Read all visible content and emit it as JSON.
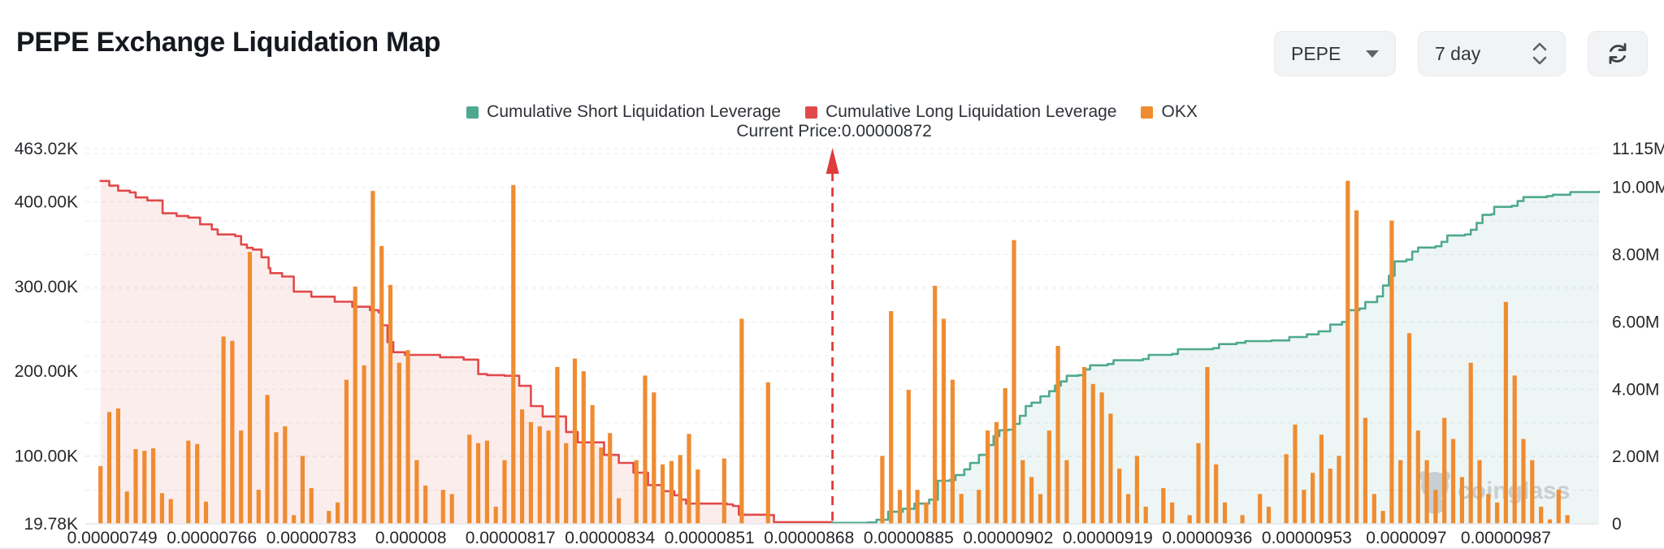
{
  "header": {
    "title": "PEPE Exchange Liquidation Map",
    "coin_select": "PEPE",
    "range_select": "7 day",
    "icons": {
      "coin_caret": "caret-down",
      "range_stepper": "chevron-up-down",
      "refresh": "refresh-arrows"
    }
  },
  "watermark": {
    "text": "coinglass",
    "icon": "gorilla-logo",
    "color": "#c6cacf"
  },
  "chart_data": {
    "type": "mixed-bar-line",
    "legend": [
      {
        "key": "short",
        "label": "Cumulative Short Liquidation Leverage",
        "color": "#4fa98f"
      },
      {
        "key": "long",
        "label": "Cumulative Long Liquidation Leverage",
        "color": "#e14a4a"
      },
      {
        "key": "okx",
        "label": "OKX",
        "color": "#ef8c31"
      }
    ],
    "current_price_label": "Current Price:0.00000872",
    "current_price_e6": 8.72,
    "price_marker_color": "#e03b3b",
    "price_domain_e6": [
      7.444,
      10.029
    ],
    "grid_on": true,
    "left_axis": {
      "unit": "K",
      "min_k": 19.78,
      "max_k": 463.02,
      "ticks": [
        {
          "label": "463.02K",
          "k": 463.02
        },
        {
          "label": "400.00K",
          "k": 400
        },
        {
          "label": "300.00K",
          "k": 300
        },
        {
          "label": "200.00K",
          "k": 200
        },
        {
          "label": "100.00K",
          "k": 100
        },
        {
          "label": "19.78K",
          "k": 19.78
        }
      ],
      "grid_k": [
        100,
        200,
        300,
        400,
        463.02
      ]
    },
    "right_axis": {
      "unit": "M",
      "min_m": 0,
      "max_m": 11.15,
      "ticks": [
        {
          "label": "11.15M",
          "m": 11.15
        },
        {
          "label": "10.00M",
          "m": 10
        },
        {
          "label": "8.00M",
          "m": 8
        },
        {
          "label": "6.00M",
          "m": 6
        },
        {
          "label": "4.00M",
          "m": 4
        },
        {
          "label": "2.00M",
          "m": 2
        },
        {
          "label": "0",
          "m": 0
        }
      ],
      "grid_m": [
        1,
        2,
        3,
        4,
        5,
        6,
        7,
        8,
        9,
        10,
        11,
        11.15
      ]
    },
    "x_axis": {
      "labels": [
        {
          "label": "0.00000749",
          "p": 7.49
        },
        {
          "label": "0.00000766",
          "p": 7.66
        },
        {
          "label": "0.00000783",
          "p": 7.83
        },
        {
          "label": "0.000008",
          "p": 8.0
        },
        {
          "label": "0.00000817",
          "p": 8.17
        },
        {
          "label": "0.00000834",
          "p": 8.34
        },
        {
          "label": "0.00000851",
          "p": 8.51
        },
        {
          "label": "0.00000868",
          "p": 8.68
        },
        {
          "label": "0.00000885",
          "p": 8.85
        },
        {
          "label": "0.00000902",
          "p": 9.02
        },
        {
          "label": "0.00000919",
          "p": 9.19
        },
        {
          "label": "0.00000936",
          "p": 9.36
        },
        {
          "label": "0.00000953",
          "p": 9.53
        },
        {
          "label": "0.0000097",
          "p": 9.7
        },
        {
          "label": "0.00000987",
          "p": 9.87
        }
      ]
    },
    "bars": {
      "name": "OKX",
      "color": "#ef8c31",
      "axis": "left",
      "start_e6": 7.455,
      "step_e6": 0.015,
      "bar_width": 5.2,
      "values_k": [
        0,
        88,
        152,
        156,
        58,
        108,
        106,
        109,
        56,
        49,
        0,
        118,
        114,
        46,
        0,
        241,
        236,
        130,
        341,
        60,
        172,
        128,
        135,
        30,
        100,
        62,
        0,
        35,
        45,
        190,
        300,
        207,
        413,
        348,
        302,
        210,
        225,
        95,
        65,
        0,
        60,
        55,
        0,
        125,
        115,
        118,
        40,
        95,
        420,
        155,
        140,
        135,
        130,
        205,
        115,
        215,
        200,
        160,
        110,
        127,
        50,
        0,
        95,
        195,
        175,
        90,
        94,
        101,
        126,
        84,
        0,
        0,
        97,
        0,
        262,
        0,
        0,
        187,
        0,
        0,
        0,
        0,
        0,
        0,
        0,
        0,
        0,
        0,
        0,
        0,
        100,
        271,
        60,
        178,
        60,
        45,
        301,
        262,
        190,
        55,
        0,
        60,
        130,
        140,
        180,
        355,
        95,
        75,
        55,
        130,
        230,
        95,
        0,
        205,
        185,
        175,
        150,
        85,
        55,
        100,
        40,
        0,
        62,
        45,
        0,
        30,
        115,
        205,
        90,
        45,
        0,
        30,
        0,
        55,
        40,
        0,
        102,
        137,
        60,
        80,
        125,
        85,
        100,
        425,
        390,
        145,
        55,
        35,
        378,
        95,
        245,
        130,
        95,
        60,
        145,
        120,
        75,
        210,
        95,
        55,
        45,
        282,
        195,
        120,
        95,
        40,
        25,
        60,
        30
      ]
    },
    "lines": [
      {
        "name": "Cumulative Long Liquidation Leverage",
        "color": "#e14a4a",
        "fill": "rgba(225,74,74,0.10)",
        "axis": "right",
        "points_m": [
          [
            7.47,
            10.19
          ],
          [
            7.485,
            10.05
          ],
          [
            7.5,
            9.9
          ],
          [
            7.52,
            9.85
          ],
          [
            7.53,
            9.7
          ],
          [
            7.55,
            9.61
          ],
          [
            7.576,
            9.23
          ],
          [
            7.6,
            9.15
          ],
          [
            7.62,
            9.1
          ],
          [
            7.64,
            8.9
          ],
          [
            7.66,
            8.75
          ],
          [
            7.67,
            8.6
          ],
          [
            7.7,
            8.55
          ],
          [
            7.71,
            8.3
          ],
          [
            7.72,
            8.2
          ],
          [
            7.73,
            8.15
          ],
          [
            7.745,
            7.92
          ],
          [
            7.757,
            7.6
          ],
          [
            7.76,
            7.45
          ],
          [
            7.78,
            7.35
          ],
          [
            7.8,
            6.9
          ],
          [
            7.83,
            6.75
          ],
          [
            7.87,
            6.6
          ],
          [
            7.9,
            6.45
          ],
          [
            7.93,
            6.35
          ],
          [
            7.945,
            6.28
          ],
          [
            7.95,
            5.9
          ],
          [
            7.96,
            5.4
          ],
          [
            7.97,
            5.1
          ],
          [
            7.99,
            5.02
          ],
          [
            8.05,
            4.95
          ],
          [
            8.09,
            4.88
          ],
          [
            8.115,
            4.45
          ],
          [
            8.13,
            4.42
          ],
          [
            8.16,
            4.4
          ],
          [
            8.185,
            4.1
          ],
          [
            8.205,
            3.5
          ],
          [
            8.225,
            3.19
          ],
          [
            8.265,
            2.73
          ],
          [
            8.285,
            2.42
          ],
          [
            8.33,
            2.05
          ],
          [
            8.355,
            1.81
          ],
          [
            8.38,
            1.52
          ],
          [
            8.405,
            1.15
          ],
          [
            8.43,
            0.97
          ],
          [
            8.45,
            0.85
          ],
          [
            8.46,
            0.72
          ],
          [
            8.47,
            0.6
          ],
          [
            8.54,
            0.58
          ],
          [
            8.55,
            0.53
          ],
          [
            8.56,
            0.27
          ],
          [
            8.61,
            0.26
          ],
          [
            8.62,
            0.05
          ],
          [
            8.72,
            0.04
          ]
        ]
      },
      {
        "name": "Cumulative Short Liquidation Leverage",
        "color": "#4fa98f",
        "fill": "rgba(79,169,143,0.10)",
        "axis": "right",
        "points_m": [
          [
            8.72,
            0.03
          ],
          [
            8.78,
            0.04
          ],
          [
            8.795,
            0.12
          ],
          [
            8.815,
            0.36
          ],
          [
            8.84,
            0.45
          ],
          [
            8.86,
            0.6
          ],
          [
            8.885,
            0.72
          ],
          [
            8.9,
            1.28
          ],
          [
            8.92,
            1.3
          ],
          [
            8.93,
            1.45
          ],
          [
            8.945,
            1.62
          ],
          [
            8.955,
            1.81
          ],
          [
            8.97,
            2.05
          ],
          [
            8.985,
            2.34
          ],
          [
            8.995,
            2.61
          ],
          [
            9.005,
            2.78
          ],
          [
            9.02,
            2.8
          ],
          [
            9.03,
            2.97
          ],
          [
            9.04,
            3.21
          ],
          [
            9.05,
            3.5
          ],
          [
            9.06,
            3.6
          ],
          [
            9.075,
            3.79
          ],
          [
            9.09,
            3.94
          ],
          [
            9.1,
            4.11
          ],
          [
            9.11,
            4.23
          ],
          [
            9.12,
            4.4
          ],
          [
            9.14,
            4.42
          ],
          [
            9.15,
            4.59
          ],
          [
            9.16,
            4.71
          ],
          [
            9.19,
            4.75
          ],
          [
            9.2,
            4.86
          ],
          [
            9.25,
            4.9
          ],
          [
            9.26,
            5.02
          ],
          [
            9.3,
            5.05
          ],
          [
            9.31,
            5.19
          ],
          [
            9.37,
            5.22
          ],
          [
            9.38,
            5.34
          ],
          [
            9.41,
            5.38
          ],
          [
            9.425,
            5.43
          ],
          [
            9.47,
            5.45
          ],
          [
            9.5,
            5.55
          ],
          [
            9.53,
            5.63
          ],
          [
            9.55,
            5.72
          ],
          [
            9.57,
            5.92
          ],
          [
            9.59,
            6.0
          ],
          [
            9.6,
            6.35
          ],
          [
            9.62,
            6.4
          ],
          [
            9.63,
            6.59
          ],
          [
            9.65,
            6.76
          ],
          [
            9.66,
            7.08
          ],
          [
            9.67,
            7.37
          ],
          [
            9.68,
            7.8
          ],
          [
            9.7,
            7.85
          ],
          [
            9.71,
            8.09
          ],
          [
            9.72,
            8.21
          ],
          [
            9.75,
            8.25
          ],
          [
            9.76,
            8.38
          ],
          [
            9.77,
            8.57
          ],
          [
            9.8,
            8.6
          ],
          [
            9.81,
            8.74
          ],
          [
            9.82,
            8.94
          ],
          [
            9.83,
            9.18
          ],
          [
            9.845,
            9.2
          ],
          [
            9.85,
            9.42
          ],
          [
            9.88,
            9.45
          ],
          [
            9.89,
            9.59
          ],
          [
            9.9,
            9.71
          ],
          [
            9.94,
            9.74
          ],
          [
            9.95,
            9.78
          ],
          [
            9.98,
            9.86
          ],
          [
            10.029,
            9.87
          ]
        ]
      }
    ]
  }
}
